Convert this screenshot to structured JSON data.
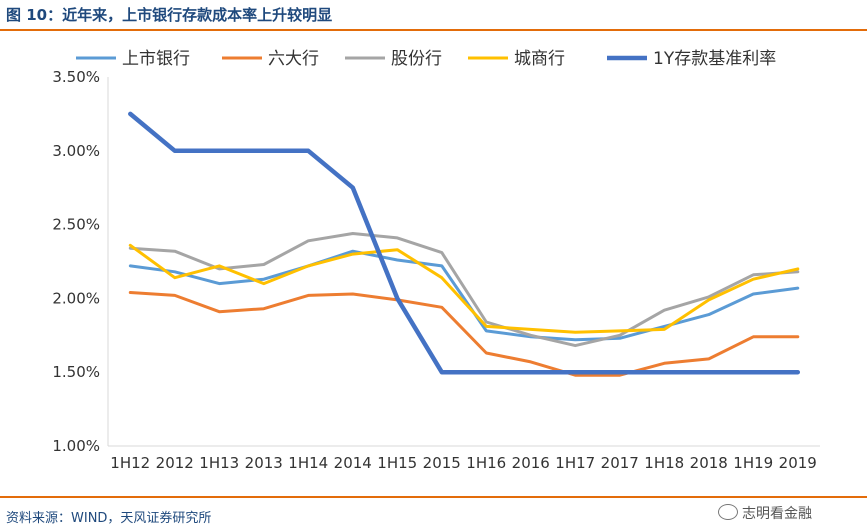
{
  "header": {
    "title": "图 10：近年来，上市银行存款成本率上升较明显"
  },
  "footer": {
    "source": "资料来源：WIND，天风证券研究所",
    "watermark": "志明看金融"
  },
  "chart_data": {
    "type": "line",
    "categories": [
      "1H12",
      "2012",
      "1H13",
      "2013",
      "1H14",
      "2014",
      "1H15",
      "2015",
      "1H16",
      "2016",
      "1H17",
      "2017",
      "1H18",
      "2018",
      "1H19",
      "2019"
    ],
    "ylim": [
      0.01,
      0.035
    ],
    "yticks": [
      "1.00%",
      "1.50%",
      "2.00%",
      "2.50%",
      "3.00%",
      "3.50%"
    ],
    "ytick_values": [
      0.01,
      0.015,
      0.02,
      0.025,
      0.03,
      0.035
    ],
    "grid": false,
    "legend_position": "top",
    "series": [
      {
        "name": "上市银行",
        "color": "#5b9bd5",
        "values": [
          0.0222,
          0.0218,
          0.021,
          0.0213,
          0.0222,
          0.0232,
          0.0226,
          0.0222,
          0.0178,
          0.0174,
          0.0172,
          0.0173,
          0.0181,
          0.0189,
          0.0203,
          0.0207
        ]
      },
      {
        "name": "六大行",
        "color": "#ed7d31",
        "values": [
          0.0204,
          0.0202,
          0.0191,
          0.0193,
          0.0202,
          0.0203,
          0.0199,
          0.0194,
          0.0163,
          0.0157,
          0.0148,
          0.0148,
          0.0156,
          0.0159,
          0.0174,
          0.0174
        ]
      },
      {
        "name": "股份行",
        "color": "#a5a5a5",
        "values": [
          0.0234,
          0.0232,
          0.022,
          0.0223,
          0.0239,
          0.0244,
          0.0241,
          0.0231,
          0.0184,
          0.0175,
          0.0168,
          0.0175,
          0.0192,
          0.0201,
          0.0216,
          0.0218
        ]
      },
      {
        "name": "城商行",
        "color": "#ffc000",
        "values": [
          0.0236,
          0.0214,
          0.0222,
          0.021,
          0.0222,
          0.023,
          0.0233,
          0.0214,
          0.0181,
          0.0179,
          0.0177,
          0.0178,
          0.0179,
          0.0199,
          0.0213,
          0.022
        ]
      },
      {
        "name": "1Y存款基准利率",
        "color": "#4472c4",
        "thick": true,
        "values": [
          0.0325,
          0.03,
          0.03,
          0.03,
          0.03,
          0.0275,
          0.02,
          0.015,
          0.015,
          0.015,
          0.015,
          0.015,
          0.015,
          0.015,
          0.015,
          0.015
        ]
      }
    ]
  }
}
